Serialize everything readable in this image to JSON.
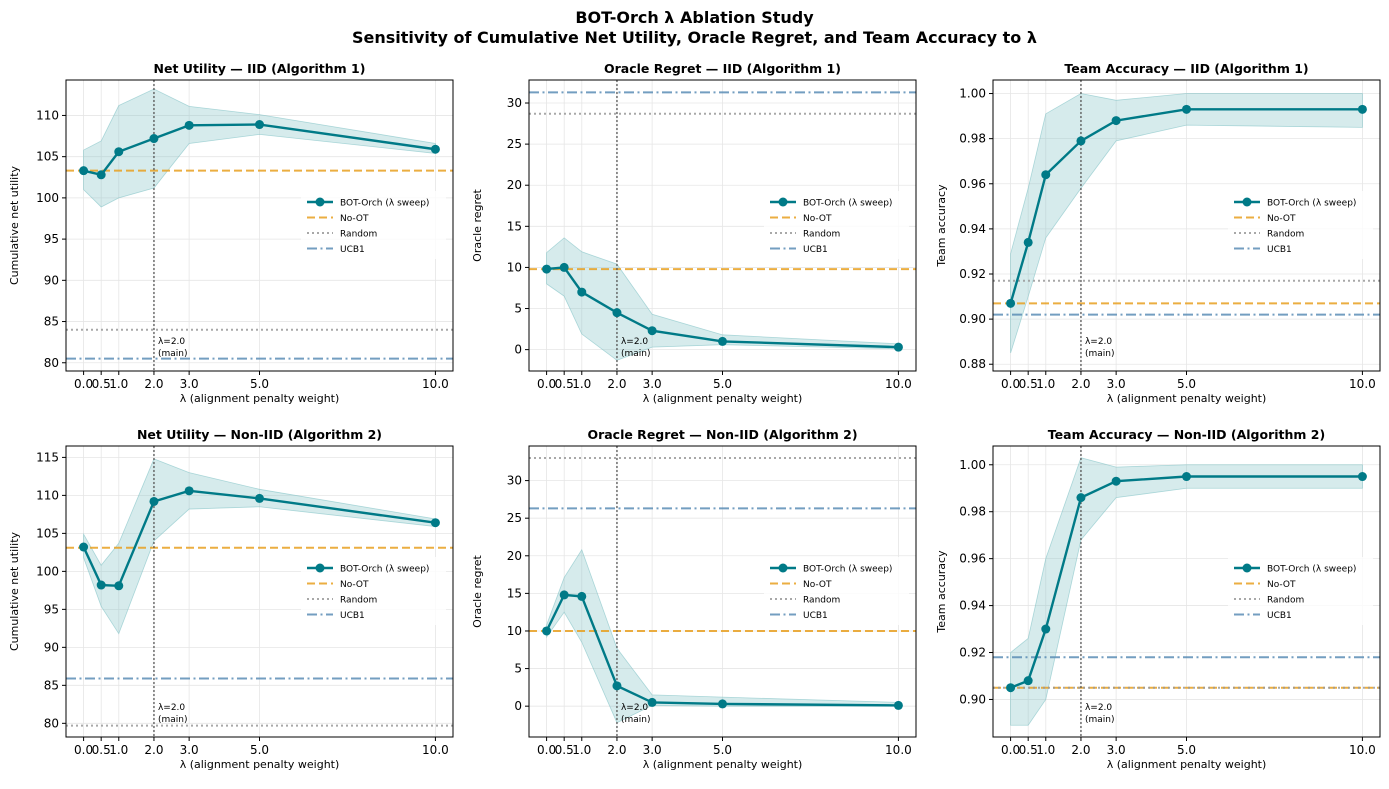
{
  "figure": {
    "title_line1": "BOT-Orch λ Ablation Study",
    "title_line2": "Sensitivity of Cumulative Net Utility, Oracle Regret, and Team Accuracy to λ"
  },
  "colors": {
    "sweep": "#007a87",
    "band": "#7fc1c4",
    "no_ot": "#e8a020",
    "random": "#999999",
    "ucb1": "#5b8db5",
    "marker_line": "#555555",
    "grid": "#e6e6e6"
  },
  "legend_labels": [
    "BOT-Orch (λ sweep)",
    "No-OT",
    "Random",
    "UCB1"
  ],
  "chart_data": [
    {
      "type": "line",
      "title": "Net Utility — IID (Algorithm 1)",
      "xlabel": "λ (alignment penalty weight)",
      "ylabel": "Cumulative net utility",
      "x": [
        0.0,
        0.5,
        1.0,
        2.0,
        3.0,
        5.0,
        10.0
      ],
      "x_tick_labels": [
        "0.0",
        "0.5",
        "1.0",
        "2.0",
        "3.0",
        "5.0",
        "10.0"
      ],
      "xlim": [
        -0.5,
        10.5
      ],
      "ylim": [
        79,
        114.3
      ],
      "y_ticks": [
        80,
        85,
        90,
        95,
        100,
        105,
        110
      ],
      "series": [
        {
          "name": "BOT-Orch (λ sweep)",
          "values": [
            103.3,
            102.8,
            105.6,
            107.2,
            108.8,
            108.9,
            105.9
          ],
          "lower": [
            101.0,
            98.9,
            100.0,
            101.2,
            106.6,
            107.7,
            105.4
          ],
          "upper": [
            105.8,
            106.9,
            111.2,
            113.2,
            111.1,
            110.1,
            106.6
          ]
        }
      ],
      "baselines": {
        "No-OT": 103.3,
        "Random": 84.0,
        "UCB1": 80.5
      },
      "annotation": {
        "x": 2.0,
        "line1": "λ=2.0",
        "line2": "(main)"
      },
      "legend": "center-right"
    },
    {
      "type": "line",
      "title": "Oracle Regret — IID (Algorithm 1)",
      "xlabel": "λ (alignment penalty weight)",
      "ylabel": "Oracle regret",
      "x": [
        0.0,
        0.5,
        1.0,
        2.0,
        3.0,
        5.0,
        10.0
      ],
      "x_tick_labels": [
        "0.0",
        "0.5",
        "1.0",
        "2.0",
        "3.0",
        "5.0",
        "10.0"
      ],
      "xlim": [
        -0.5,
        10.5
      ],
      "ylim": [
        -2.6,
        32.8
      ],
      "y_ticks": [
        0,
        5,
        10,
        15,
        20,
        25,
        30
      ],
      "series": [
        {
          "name": "BOT-Orch (λ sweep)",
          "values": [
            9.8,
            10.0,
            7.0,
            4.5,
            2.3,
            1.0,
            0.3
          ],
          "lower": [
            8.0,
            6.5,
            1.9,
            -1.3,
            0.3,
            0.6,
            0.1
          ],
          "upper": [
            11.8,
            13.6,
            11.9,
            10.4,
            4.3,
            1.8,
            0.7
          ]
        }
      ],
      "baselines": {
        "No-OT": 9.8,
        "Random": 28.7,
        "UCB1": 31.3
      },
      "annotation": {
        "x": 2.0,
        "line1": "λ=2.0",
        "line2": "(main)"
      },
      "legend": "center-right"
    },
    {
      "type": "line",
      "title": "Team Accuracy — IID (Algorithm 1)",
      "xlabel": "λ (alignment penalty weight)",
      "ylabel": "Team accuracy",
      "x": [
        0.0,
        0.5,
        1.0,
        2.0,
        3.0,
        5.0,
        10.0
      ],
      "x_tick_labels": [
        "0.0",
        "0.5",
        "1.0",
        "2.0",
        "3.0",
        "5.0",
        "10.0"
      ],
      "xlim": [
        -0.5,
        10.5
      ],
      "ylim": [
        0.877,
        1.006
      ],
      "y_ticks": [
        0.88,
        0.9,
        0.92,
        0.94,
        0.96,
        0.98,
        1.0
      ],
      "y_tick_labels": [
        "0.88",
        "0.90",
        "0.92",
        "0.94",
        "0.96",
        "0.98",
        "1.00"
      ],
      "series": [
        {
          "name": "BOT-Orch (λ sweep)",
          "values": [
            0.907,
            0.934,
            0.964,
            0.979,
            0.988,
            0.993,
            0.993
          ],
          "lower": [
            0.885,
            0.91,
            0.936,
            0.958,
            0.979,
            0.986,
            0.985
          ],
          "upper": [
            0.929,
            0.958,
            0.991,
            1.0,
            0.997,
            1.0,
            1.0
          ]
        }
      ],
      "baselines": {
        "No-OT": 0.907,
        "Random": 0.917,
        "UCB1": 0.902
      },
      "annotation": {
        "x": 2.0,
        "line1": "λ=2.0",
        "line2": "(main)"
      },
      "legend": "center-right"
    },
    {
      "type": "line",
      "title": "Net Utility — Non-IID (Algorithm 2)",
      "xlabel": "λ (alignment penalty weight)",
      "ylabel": "Cumulative net utility",
      "x": [
        0.0,
        0.5,
        1.0,
        2.0,
        3.0,
        5.0,
        10.0
      ],
      "x_tick_labels": [
        "0.0",
        "0.5",
        "1.0",
        "2.0",
        "3.0",
        "5.0",
        "10.0"
      ],
      "xlim": [
        -0.5,
        10.5
      ],
      "ylim": [
        78.2,
        116.5
      ],
      "y_ticks": [
        80,
        85,
        90,
        95,
        100,
        105,
        110,
        115
      ],
      "series": [
        {
          "name": "BOT-Orch (λ sweep)",
          "values": [
            103.2,
            98.2,
            98.1,
            109.2,
            110.6,
            109.6,
            106.4
          ],
          "lower": [
            101.8,
            95.4,
            91.8,
            104.0,
            108.2,
            108.5,
            105.9
          ],
          "upper": [
            104.9,
            100.8,
            103.7,
            114.8,
            113.0,
            110.8,
            106.9
          ]
        }
      ],
      "baselines": {
        "No-OT": 103.1,
        "Random": 79.7,
        "UCB1": 85.9
      },
      "annotation": {
        "x": 2.0,
        "line1": "λ=2.0",
        "line2": "(main)"
      },
      "legend": "center-right"
    },
    {
      "type": "line",
      "title": "Oracle Regret — Non-IID (Algorithm 2)",
      "xlabel": "λ (alignment penalty weight)",
      "ylabel": "Oracle regret",
      "x": [
        0.0,
        0.5,
        1.0,
        2.0,
        3.0,
        5.0,
        10.0
      ],
      "x_tick_labels": [
        "0.0",
        "0.5",
        "1.0",
        "2.0",
        "3.0",
        "5.0",
        "10.0"
      ],
      "xlim": [
        -0.5,
        10.5
      ],
      "ylim": [
        -4.1,
        34.6
      ],
      "y_ticks": [
        0,
        5,
        10,
        15,
        20,
        25,
        30
      ],
      "series": [
        {
          "name": "BOT-Orch (λ sweep)",
          "values": [
            10.0,
            14.8,
            14.6,
            2.7,
            0.5,
            0.3,
            0.1
          ],
          "lower": [
            9.2,
            12.5,
            8.5,
            -2.2,
            0.1,
            0.0,
            0.0
          ],
          "upper": [
            10.8,
            17.1,
            20.8,
            7.7,
            1.5,
            1.2,
            0.5
          ]
        }
      ],
      "baselines": {
        "No-OT": 10.0,
        "Random": 33.0,
        "UCB1": 26.3
      },
      "annotation": {
        "x": 2.0,
        "line1": "λ=2.0",
        "line2": "(main)"
      },
      "legend": "center-right"
    },
    {
      "type": "line",
      "title": "Team Accuracy — Non-IID (Algorithm 2)",
      "xlabel": "λ (alignment penalty weight)",
      "ylabel": "Team accuracy",
      "x": [
        0.0,
        0.5,
        1.0,
        2.0,
        3.0,
        5.0,
        10.0
      ],
      "x_tick_labels": [
        "0.0",
        "0.5",
        "1.0",
        "2.0",
        "3.0",
        "5.0",
        "10.0"
      ],
      "xlim": [
        -0.5,
        10.5
      ],
      "ylim": [
        0.884,
        1.008
      ],
      "y_ticks": [
        0.9,
        0.92,
        0.94,
        0.96,
        0.98,
        1.0
      ],
      "y_tick_labels": [
        "0.90",
        "0.92",
        "0.94",
        "0.96",
        "0.98",
        "1.00"
      ],
      "series": [
        {
          "name": "BOT-Orch (λ sweep)",
          "values": [
            0.905,
            0.908,
            0.93,
            0.986,
            0.993,
            0.995,
            0.995
          ],
          "lower": [
            0.889,
            0.889,
            0.9,
            0.968,
            0.986,
            0.99,
            0.99
          ],
          "upper": [
            0.92,
            0.926,
            0.96,
            1.003,
            0.999,
            1.0,
            1.0
          ]
        }
      ],
      "baselines": {
        "No-OT": 0.905,
        "Random": 0.905,
        "UCB1": 0.918
      },
      "annotation": {
        "x": 2.0,
        "line1": "λ=2.0",
        "line2": "(main)"
      },
      "legend": "center-right"
    }
  ]
}
